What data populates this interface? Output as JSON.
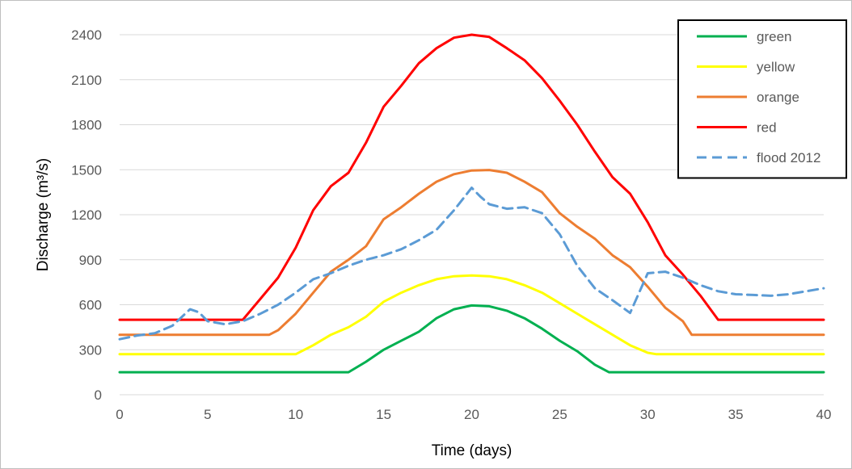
{
  "chart_data": {
    "type": "line",
    "title": "",
    "xlabel": "Time (days)",
    "ylabel": "Discharge (m³/s)",
    "xlim": [
      0,
      40
    ],
    "ylim": [
      0,
      2400
    ],
    "xticks": [
      0,
      5,
      10,
      15,
      20,
      25,
      30,
      35,
      40
    ],
    "yticks": [
      0,
      300,
      600,
      900,
      1200,
      1500,
      1800,
      2100,
      2400
    ],
    "grid": "horizontal",
    "legend_position": "top-right",
    "series": [
      {
        "name": "green",
        "color": "#00b050",
        "dash": "solid",
        "points": [
          [
            0,
            150
          ],
          [
            13,
            150
          ],
          [
            14,
            220
          ],
          [
            15,
            300
          ],
          [
            16,
            360
          ],
          [
            17,
            420
          ],
          [
            18,
            510
          ],
          [
            19,
            570
          ],
          [
            20,
            595
          ],
          [
            21,
            590
          ],
          [
            22,
            560
          ],
          [
            23,
            510
          ],
          [
            24,
            440
          ],
          [
            25,
            360
          ],
          [
            26,
            290
          ],
          [
            27,
            200
          ],
          [
            27.8,
            150
          ],
          [
            40,
            150
          ]
        ]
      },
      {
        "name": "yellow",
        "color": "#ffff00",
        "dash": "solid",
        "points": [
          [
            0,
            270
          ],
          [
            10,
            270
          ],
          [
            11,
            330
          ],
          [
            12,
            400
          ],
          [
            13,
            450
          ],
          [
            14,
            520
          ],
          [
            15,
            620
          ],
          [
            16,
            680
          ],
          [
            17,
            730
          ],
          [
            18,
            770
          ],
          [
            19,
            790
          ],
          [
            20,
            795
          ],
          [
            21,
            790
          ],
          [
            22,
            770
          ],
          [
            23,
            730
          ],
          [
            24,
            680
          ],
          [
            25,
            610
          ],
          [
            26,
            540
          ],
          [
            27,
            470
          ],
          [
            28,
            400
          ],
          [
            29,
            330
          ],
          [
            30,
            280
          ],
          [
            30.5,
            270
          ],
          [
            40,
            270
          ]
        ]
      },
      {
        "name": "orange",
        "color": "#ed7d31",
        "dash": "solid",
        "points": [
          [
            0,
            400
          ],
          [
            8.5,
            400
          ],
          [
            9,
            430
          ],
          [
            10,
            540
          ],
          [
            11,
            680
          ],
          [
            12,
            820
          ],
          [
            13,
            900
          ],
          [
            14,
            990
          ],
          [
            15,
            1170
          ],
          [
            16,
            1250
          ],
          [
            17,
            1340
          ],
          [
            18,
            1420
          ],
          [
            19,
            1470
          ],
          [
            20,
            1495
          ],
          [
            21,
            1498
          ],
          [
            22,
            1480
          ],
          [
            23,
            1420
          ],
          [
            24,
            1350
          ],
          [
            25,
            1210
          ],
          [
            26,
            1120
          ],
          [
            27,
            1040
          ],
          [
            28,
            930
          ],
          [
            29,
            850
          ],
          [
            30,
            720
          ],
          [
            31,
            580
          ],
          [
            32,
            490
          ],
          [
            32.5,
            400
          ],
          [
            40,
            400
          ]
        ]
      },
      {
        "name": "red",
        "color": "#ff0000",
        "dash": "solid",
        "points": [
          [
            0,
            500
          ],
          [
            7,
            500
          ],
          [
            8,
            640
          ],
          [
            9,
            780
          ],
          [
            10,
            980
          ],
          [
            11,
            1230
          ],
          [
            12,
            1390
          ],
          [
            13,
            1480
          ],
          [
            14,
            1680
          ],
          [
            15,
            1920
          ],
          [
            16,
            2060
          ],
          [
            17,
            2210
          ],
          [
            18,
            2310
          ],
          [
            19,
            2380
          ],
          [
            20,
            2400
          ],
          [
            21,
            2385
          ],
          [
            22,
            2310
          ],
          [
            23,
            2230
          ],
          [
            24,
            2110
          ],
          [
            25,
            1960
          ],
          [
            26,
            1800
          ],
          [
            27,
            1620
          ],
          [
            28,
            1450
          ],
          [
            29,
            1340
          ],
          [
            30,
            1150
          ],
          [
            31,
            930
          ],
          [
            32,
            800
          ],
          [
            33,
            660
          ],
          [
            34,
            500
          ],
          [
            40,
            500
          ]
        ]
      },
      {
        "name": "flood 2012",
        "color": "#5b9bd5",
        "dash": "dashed",
        "points": [
          [
            0,
            370
          ],
          [
            1,
            395
          ],
          [
            2,
            410
          ],
          [
            3,
            460
          ],
          [
            4,
            570
          ],
          [
            4.5,
            550
          ],
          [
            5,
            490
          ],
          [
            6,
            470
          ],
          [
            7,
            490
          ],
          [
            8,
            540
          ],
          [
            9,
            600
          ],
          [
            10,
            680
          ],
          [
            11,
            770
          ],
          [
            12,
            810
          ],
          [
            13,
            860
          ],
          [
            14,
            900
          ],
          [
            15,
            930
          ],
          [
            16,
            970
          ],
          [
            17,
            1030
          ],
          [
            18,
            1100
          ],
          [
            19,
            1230
          ],
          [
            20,
            1380
          ],
          [
            20.5,
            1320
          ],
          [
            21,
            1270
          ],
          [
            22,
            1240
          ],
          [
            23,
            1250
          ],
          [
            24,
            1210
          ],
          [
            25,
            1070
          ],
          [
            26,
            860
          ],
          [
            27,
            710
          ],
          [
            28,
            630
          ],
          [
            29,
            545
          ],
          [
            30,
            810
          ],
          [
            31,
            820
          ],
          [
            32,
            780
          ],
          [
            33,
            730
          ],
          [
            34,
            690
          ],
          [
            35,
            670
          ],
          [
            36,
            665
          ],
          [
            37,
            660
          ],
          [
            38,
            670
          ],
          [
            39,
            690
          ],
          [
            40,
            710
          ]
        ]
      }
    ]
  }
}
